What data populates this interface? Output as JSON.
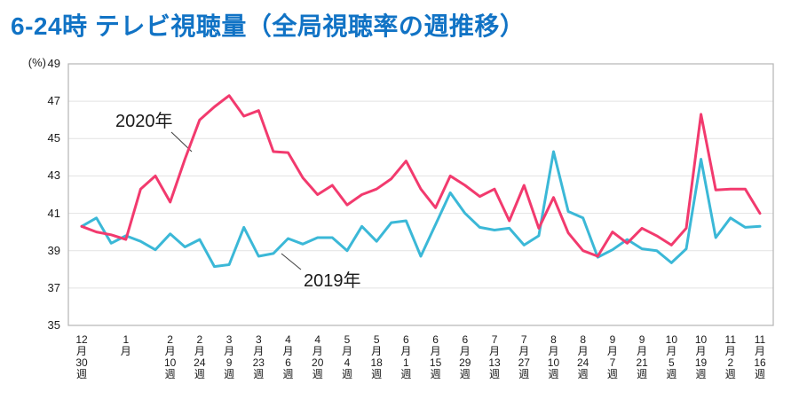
{
  "title": "6-24時 テレビ視聴量（全局視聴率の週推移）",
  "y_axis": {
    "unit": "(%)",
    "min": 35,
    "max": 49
  },
  "series_labels": {
    "s2020": "2020年",
    "s2019": "2019年"
  },
  "colors": {
    "title": "#1173C5",
    "series_2020": "#F23A6E",
    "series_2019": "#3BB8D7",
    "grid": "#E2E2E2",
    "border": "#B5B5B5",
    "tick_text": "#1a1a1a"
  },
  "chart_data": {
    "type": "line",
    "title": "6-24時 テレビ視聴量（全局視聴率の週推移）",
    "xlabel": "",
    "ylabel": "(%)",
    "ylim": [
      35,
      49
    ],
    "y_ticks": [
      49,
      47,
      45,
      43,
      41,
      39,
      37,
      35
    ],
    "grid": "horizontal-only",
    "legend": "inline-labels-with-callout-lines",
    "n_points": 47,
    "x_ticks": [
      {
        "i": 0,
        "label": "12月30週"
      },
      {
        "i": 3,
        "label": "1月"
      },
      {
        "i": 6,
        "label": "2月10週"
      },
      {
        "i": 8,
        "label": "2月24週"
      },
      {
        "i": 10,
        "label": "3月9週"
      },
      {
        "i": 12,
        "label": "3月23週"
      },
      {
        "i": 14,
        "label": "4月6週"
      },
      {
        "i": 16,
        "label": "4月20週"
      },
      {
        "i": 18,
        "label": "5月4週"
      },
      {
        "i": 20,
        "label": "5月18週"
      },
      {
        "i": 22,
        "label": "6月1週"
      },
      {
        "i": 24,
        "label": "6月15週"
      },
      {
        "i": 26,
        "label": "6月29週"
      },
      {
        "i": 28,
        "label": "7月13週"
      },
      {
        "i": 30,
        "label": "7月27週"
      },
      {
        "i": 32,
        "label": "8月10週"
      },
      {
        "i": 34,
        "label": "8月24週"
      },
      {
        "i": 36,
        "label": "9月7週"
      },
      {
        "i": 38,
        "label": "9月21週"
      },
      {
        "i": 40,
        "label": "10月5週"
      },
      {
        "i": 42,
        "label": "10月19週"
      },
      {
        "i": 44,
        "label": "11月2週"
      },
      {
        "i": 46,
        "label": "11月16週"
      }
    ],
    "series": [
      {
        "name": "2020年",
        "color": "#F23A6E",
        "values": [
          40.3,
          40.0,
          39.85,
          39.6,
          42.3,
          43.0,
          41.6,
          43.9,
          46.0,
          46.7,
          47.3,
          46.2,
          46.5,
          44.3,
          44.25,
          42.9,
          42.0,
          42.5,
          41.45,
          42.0,
          42.3,
          42.85,
          43.8,
          42.3,
          41.3,
          43.0,
          42.5,
          41.9,
          42.3,
          40.6,
          42.5,
          40.2,
          41.85,
          39.95,
          39.0,
          38.7,
          40.0,
          39.4,
          40.2,
          39.8,
          39.3,
          40.2,
          46.3,
          42.25,
          42.3,
          42.3,
          41.0
        ]
      },
      {
        "name": "2019年",
        "color": "#3BB8D7",
        "values": [
          40.3,
          40.75,
          39.4,
          39.8,
          39.5,
          39.05,
          39.9,
          39.2,
          39.6,
          38.15,
          38.25,
          40.25,
          38.7,
          38.85,
          39.65,
          39.35,
          39.7,
          39.7,
          39.0,
          40.3,
          39.5,
          40.5,
          40.6,
          38.7,
          40.4,
          42.1,
          41.0,
          40.25,
          40.1,
          40.2,
          39.3,
          39.8,
          44.3,
          41.1,
          40.75,
          38.65,
          39.05,
          39.6,
          39.1,
          39.0,
          38.35,
          39.1,
          43.9,
          39.7,
          40.75,
          40.25,
          40.3
        ]
      }
    ]
  }
}
